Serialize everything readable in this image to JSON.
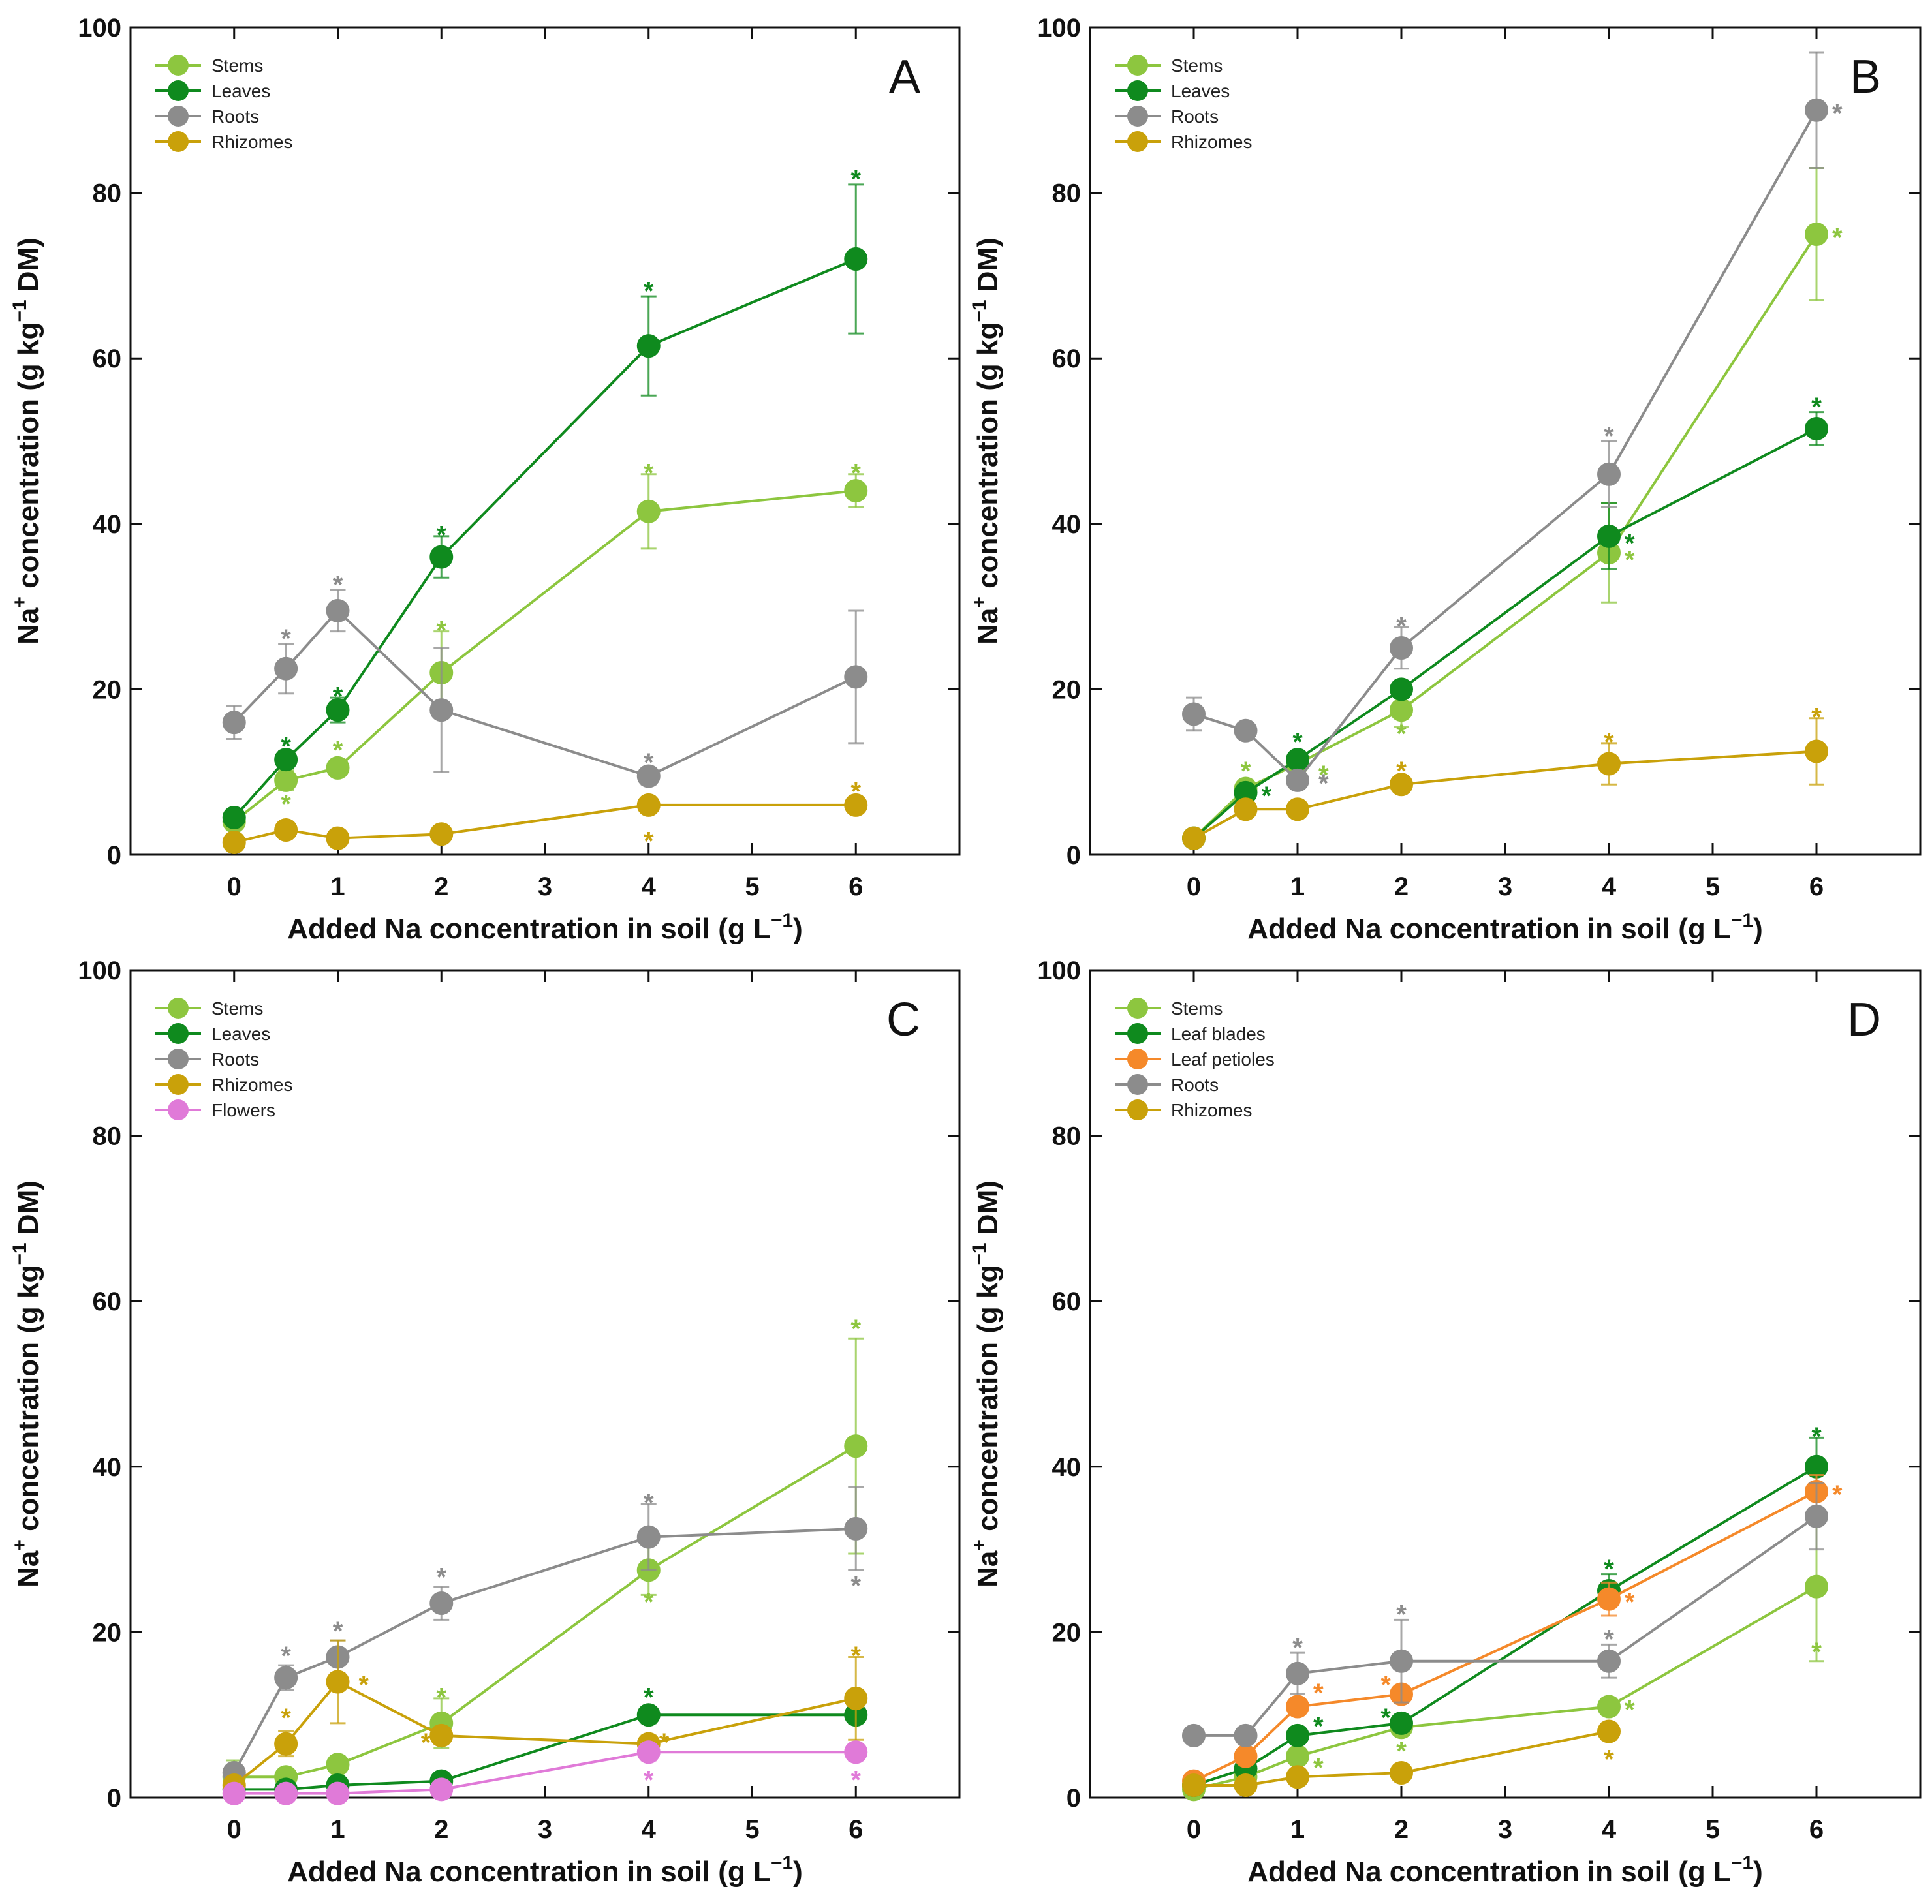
{
  "figure": {
    "xlabel": "Added Na concentration in soil (g L",
    "xlabel_sup": "−1",
    "xlabel_close": ")",
    "ylabel_pre": "Na",
    "ylabel_sup1": "+",
    "ylabel_mid": " concentration (g kg",
    "ylabel_sup2": "−1",
    "ylabel_post": " DM)"
  },
  "chart_data": [
    {
      "type": "line",
      "panel": "A",
      "xlim": [
        -1,
        7
      ],
      "ylim": [
        0,
        100
      ],
      "xticks": [
        0,
        1,
        2,
        3,
        4,
        5,
        6
      ],
      "yticks": [
        0,
        20,
        40,
        60,
        80,
        100
      ],
      "x": [
        0,
        0.5,
        1,
        2,
        4,
        6
      ],
      "series": [
        {
          "name": "Stems",
          "color": "#8dc63f",
          "x": [
            0,
            0.5,
            1,
            2,
            4,
            6
          ],
          "values": [
            4,
            9,
            10.5,
            22,
            41.5,
            44
          ],
          "err": [
            0.5,
            1.2,
            1,
            5,
            4.5,
            2
          ],
          "stars": [
            [
              0.5,
              6.5,
              "below"
            ],
            [
              1,
              13,
              "above"
            ],
            [
              2,
              27.5,
              "above"
            ],
            [
              4,
              46.5,
              "above"
            ],
            [
              6,
              46.5,
              "above"
            ]
          ]
        },
        {
          "name": "Leaves",
          "color": "#0f8a1e",
          "x": [
            0,
            0.5,
            1,
            2,
            4,
            6
          ],
          "values": [
            4.5,
            11.5,
            17.5,
            36,
            61.5,
            72
          ],
          "err": [
            0.5,
            1,
            1.5,
            2.5,
            6,
            9
          ],
          "stars": [
            [
              0.5,
              13.5,
              "above"
            ],
            [
              1,
              19.5,
              "above"
            ],
            [
              2,
              39,
              "above"
            ],
            [
              4,
              68.5,
              "above"
            ],
            [
              6,
              82,
              "above"
            ]
          ]
        },
        {
          "name": "Roots",
          "color": "#8c8c8c",
          "x": [
            0,
            0.5,
            1,
            2,
            4,
            6
          ],
          "values": [
            16,
            22.5,
            29.5,
            17.5,
            9.5,
            21.5
          ],
          "err": [
            2,
            3,
            2.5,
            7.5,
            1,
            8
          ],
          "stars": [
            [
              0.5,
              26.5,
              "above"
            ],
            [
              1,
              33,
              "above"
            ],
            [
              4,
              11.5,
              "above"
            ]
          ]
        },
        {
          "name": "Rhizomes",
          "color": "#c9a10a",
          "x": [
            0,
            0.5,
            1,
            2,
            4,
            6
          ],
          "values": [
            1.5,
            3,
            2,
            2.5,
            6,
            6
          ],
          "err": [
            0.5,
            0.5,
            0.5,
            0.5,
            0.5,
            0.5
          ],
          "stars": [
            [
              4,
              2,
              "below"
            ],
            [
              6,
              8,
              "above"
            ]
          ]
        }
      ]
    },
    {
      "type": "line",
      "panel": "B",
      "xlim": [
        -1,
        7
      ],
      "ylim": [
        0,
        100
      ],
      "xticks": [
        0,
        1,
        2,
        3,
        4,
        5,
        6
      ],
      "yticks": [
        0,
        20,
        40,
        60,
        80,
        100
      ],
      "x": [
        0,
        0.5,
        1,
        2,
        4,
        6
      ],
      "series": [
        {
          "name": "Stems",
          "color": "#8dc63f",
          "x": [
            0,
            0.5,
            1,
            2,
            4,
            6
          ],
          "values": [
            2,
            8,
            11,
            17.5,
            36.5,
            75
          ],
          "err": [
            0.3,
            1,
            1,
            2,
            6,
            8
          ],
          "stars": [
            [
              0.5,
              10.5,
              "above"
            ],
            [
              1.25,
              10,
              "right"
            ],
            [
              2,
              15,
              "below"
            ],
            [
              4.2,
              36,
              "right"
            ],
            [
              6.2,
              75,
              "right"
            ]
          ]
        },
        {
          "name": "Leaves",
          "color": "#0f8a1e",
          "x": [
            0,
            0.5,
            1,
            2,
            4,
            6
          ],
          "values": [
            2,
            7.5,
            11.5,
            20,
            38.5,
            51.5
          ],
          "err": [
            0.3,
            0.5,
            1,
            1,
            4,
            2
          ],
          "stars": [
            [
              0.7,
              7.5,
              "right"
            ],
            [
              1,
              14,
              "above"
            ],
            [
              4.2,
              38,
              "right"
            ],
            [
              6,
              54.5,
              "above"
            ]
          ]
        },
        {
          "name": "Roots",
          "color": "#8c8c8c",
          "x": [
            0,
            0.5,
            1,
            2,
            4,
            6
          ],
          "values": [
            17,
            15,
            9,
            25,
            46,
            90
          ],
          "err": [
            2,
            0.5,
            1,
            2.5,
            4,
            7
          ],
          "stars": [
            [
              1.25,
              9,
              "right"
            ],
            [
              2,
              28,
              "above"
            ],
            [
              4,
              51,
              "above"
            ],
            [
              6.2,
              90,
              "right"
            ]
          ]
        },
        {
          "name": "Rhizomes",
          "color": "#c9a10a",
          "x": [
            0,
            0.5,
            1,
            2,
            4,
            6
          ],
          "values": [
            2,
            5.5,
            5.5,
            8.5,
            11,
            12.5
          ],
          "err": [
            0.3,
            0.5,
            0.5,
            1,
            2.5,
            4
          ],
          "stars": [
            [
              2,
              10.5,
              "above"
            ],
            [
              4,
              14,
              "above"
            ],
            [
              6,
              17,
              "above"
            ]
          ]
        }
      ]
    },
    {
      "type": "line",
      "panel": "C",
      "xlim": [
        -1,
        7
      ],
      "ylim": [
        0,
        100
      ],
      "xticks": [
        0,
        1,
        2,
        3,
        4,
        5,
        6
      ],
      "yticks": [
        0,
        20,
        40,
        60,
        80,
        100
      ],
      "x": [
        0,
        0.5,
        1,
        2,
        4,
        6
      ],
      "series": [
        {
          "name": "Stems",
          "color": "#8dc63f",
          "x": [
            0,
            0.5,
            1,
            2,
            4,
            6
          ],
          "values": [
            2.5,
            2.5,
            4,
            9,
            27.5,
            42.5
          ],
          "err": [
            2,
            1,
            1,
            3,
            3,
            13
          ],
          "stars": [
            [
              2,
              12.5,
              "above"
            ],
            [
              4,
              24,
              "below"
            ],
            [
              6,
              57,
              "above"
            ]
          ]
        },
        {
          "name": "Leaves",
          "color": "#0f8a1e",
          "x": [
            0,
            0.5,
            1,
            2,
            4,
            6
          ],
          "values": [
            1,
            1,
            1.5,
            2,
            10,
            10
          ],
          "err": [
            0.3,
            0.3,
            0.3,
            0.5,
            1,
            1
          ],
          "stars": [
            [
              4,
              12.5,
              "above"
            ]
          ]
        },
        {
          "name": "Roots",
          "color": "#8c8c8c",
          "x": [
            0,
            0.5,
            1,
            2,
            4,
            6
          ],
          "values": [
            3,
            14.5,
            17,
            23.5,
            31.5,
            32.5
          ],
          "err": [
            0.5,
            1.5,
            2,
            2,
            4,
            5
          ],
          "stars": [
            [
              0.5,
              17.5,
              "above"
            ],
            [
              1,
              20.5,
              "above"
            ],
            [
              2,
              27,
              "above"
            ],
            [
              4,
              36,
              "above"
            ],
            [
              6,
              26,
              "below"
            ]
          ]
        },
        {
          "name": "Rhizomes",
          "color": "#c9a10a",
          "x": [
            0,
            0.5,
            1,
            2,
            4,
            6
          ],
          "values": [
            1.5,
            6.5,
            14,
            7.5,
            6.5,
            12
          ],
          "err": [
            0.5,
            1.5,
            5,
            1,
            1,
            5
          ],
          "stars": [
            [
              0.5,
              10,
              "above"
            ],
            [
              1.25,
              14,
              "right"
            ],
            [
              1.85,
              7,
              "left"
            ],
            [
              4.15,
              7,
              "right"
            ],
            [
              6,
              17.5,
              "above"
            ]
          ]
        },
        {
          "name": "Flowers",
          "color": "#e07ad8",
          "x": [
            0,
            0.5,
            1,
            2,
            4,
            6
          ],
          "values": [
            0.5,
            0.5,
            0.5,
            1,
            5.5,
            5.5
          ],
          "err": [
            0.2,
            0.2,
            0.2,
            0.3,
            1,
            1
          ],
          "stars": [
            [
              4,
              2.5,
              "below"
            ],
            [
              6,
              2.5,
              "below"
            ]
          ]
        }
      ]
    },
    {
      "type": "line",
      "panel": "D",
      "xlim": [
        -1,
        7
      ],
      "ylim": [
        0,
        100
      ],
      "xticks": [
        0,
        1,
        2,
        3,
        4,
        5,
        6
      ],
      "yticks": [
        0,
        20,
        40,
        60,
        80,
        100
      ],
      "x": [
        0,
        0.5,
        1,
        2,
        4,
        6
      ],
      "series": [
        {
          "name": "Stems",
          "color": "#8dc63f",
          "x": [
            0,
            0.5,
            1,
            2,
            4,
            6
          ],
          "values": [
            1,
            2.5,
            5,
            8.5,
            11,
            25.5
          ],
          "err": [
            0.3,
            0.5,
            1,
            1,
            1,
            9
          ],
          "stars": [
            [
              1.2,
              4,
              "right"
            ],
            [
              2,
              6,
              "below"
            ],
            [
              4.2,
              11,
              "right"
            ],
            [
              6,
              18,
              "below"
            ]
          ]
        },
        {
          "name": "Leaf blades",
          "color": "#0f8a1e",
          "x": [
            0,
            0.5,
            1,
            2,
            4,
            6
          ],
          "values": [
            1.5,
            3.5,
            7.5,
            9,
            25,
            40
          ],
          "err": [
            0.3,
            0.5,
            1,
            1,
            2,
            3.5
          ],
          "stars": [
            [
              1.2,
              9,
              "right"
            ],
            [
              1.85,
              10,
              "left"
            ],
            [
              4,
              28,
              "above"
            ],
            [
              6,
              44,
              "above"
            ]
          ]
        },
        {
          "name": "Leaf petioles",
          "color": "#f5892a",
          "x": [
            0,
            0.5,
            1,
            2,
            4,
            6
          ],
          "values": [
            2,
            5,
            11,
            12.5,
            24,
            37
          ],
          "err": [
            0.3,
            0.5,
            1,
            1,
            2,
            2
          ],
          "stars": [
            [
              1.2,
              13,
              "right"
            ],
            [
              1.85,
              14,
              "left"
            ],
            [
              4.2,
              24,
              "right"
            ],
            [
              6.2,
              37,
              "right"
            ]
          ]
        },
        {
          "name": "Roots",
          "color": "#8c8c8c",
          "x": [
            0,
            0.5,
            1,
            2,
            4,
            6
          ],
          "values": [
            7.5,
            7.5,
            15,
            16.5,
            16.5,
            34
          ],
          "err": [
            0.5,
            0.5,
            2.5,
            5,
            2,
            4
          ],
          "stars": [
            [
              1,
              18.5,
              "above"
            ],
            [
              2,
              22.5,
              "above"
            ],
            [
              4,
              19.5,
              "above"
            ]
          ]
        },
        {
          "name": "Rhizomes",
          "color": "#c9a10a",
          "x": [
            0,
            0.5,
            1,
            2,
            4,
            6
          ],
          "values": [
            1.5,
            1.5,
            2.5,
            3,
            8,
            null
          ],
          "err": [
            0.3,
            0.3,
            0.5,
            0.5,
            1,
            null
          ],
          "stars": [
            [
              4,
              5,
              "below"
            ]
          ]
        }
      ]
    }
  ]
}
